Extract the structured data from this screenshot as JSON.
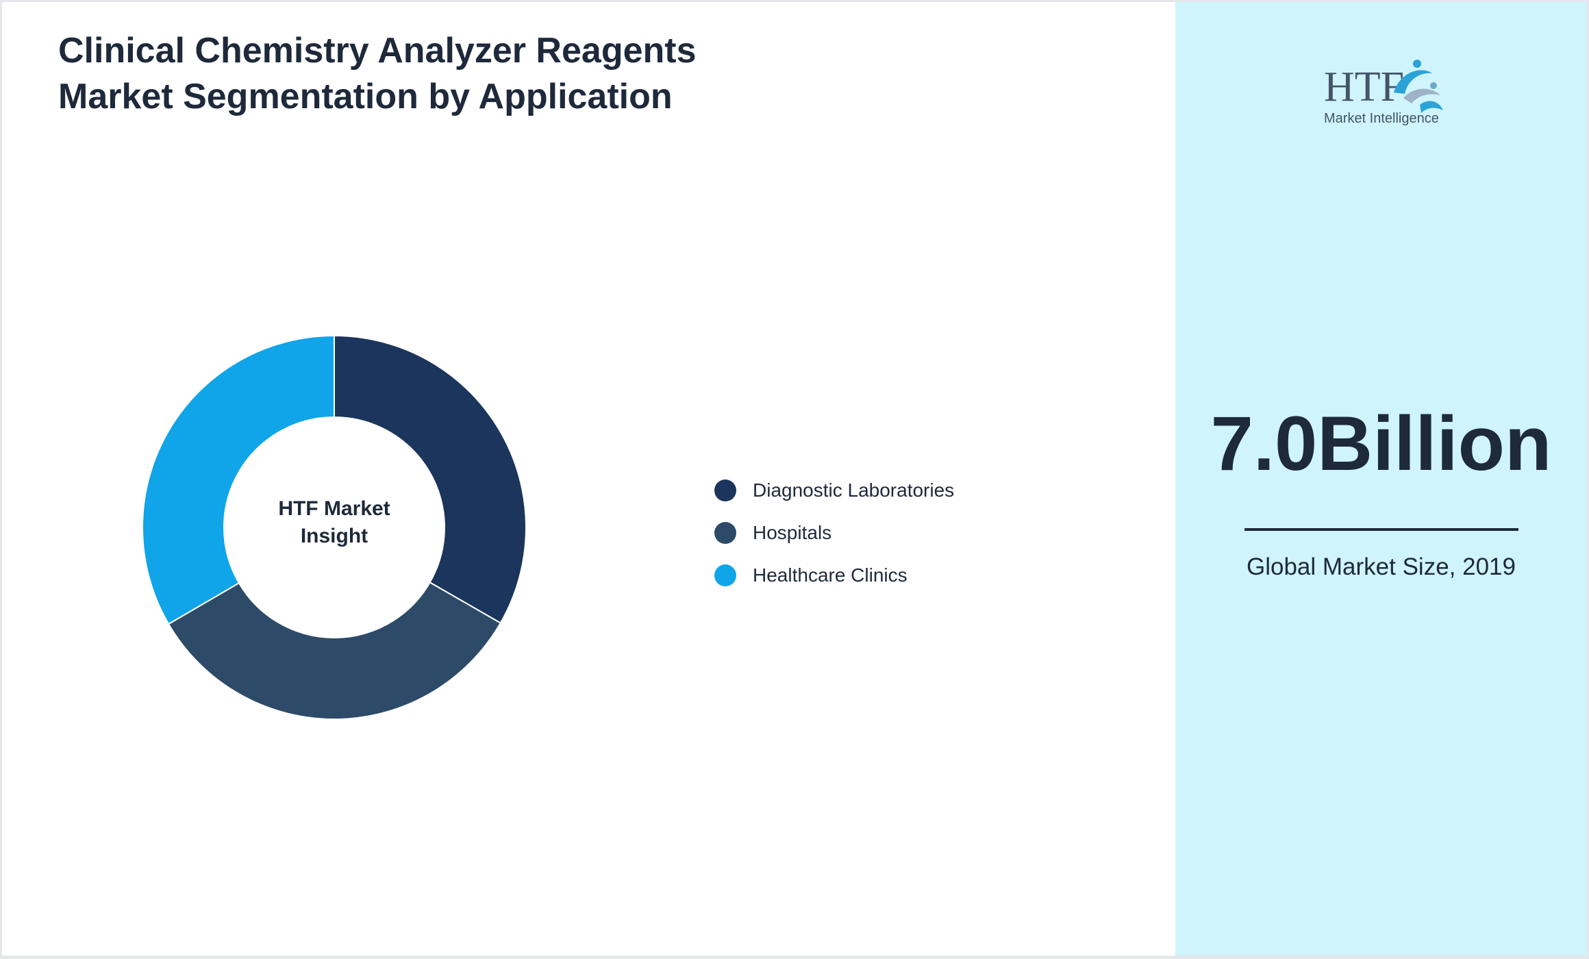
{
  "title": "Clinical Chemistry Analyzer Reagents Market Segmentation by Application",
  "chart_data": {
    "type": "pie",
    "donut": true,
    "center_label": "HTF Market Insight",
    "categories": [
      "Diagnostic Laboratories",
      "Hospitals",
      "Healthcare Clinics"
    ],
    "values": [
      33.3,
      33.3,
      33.4
    ],
    "colors": [
      "#1b355c",
      "#2d4a68",
      "#10a4e8"
    ],
    "legend_position": "right"
  },
  "sidebar": {
    "logo": {
      "text": "HTF",
      "subtitle": "Market Intelligence"
    },
    "kpi": {
      "value": "7.0Billion",
      "caption": "Global Market Size, 2019"
    },
    "background": "#cff4fc"
  }
}
